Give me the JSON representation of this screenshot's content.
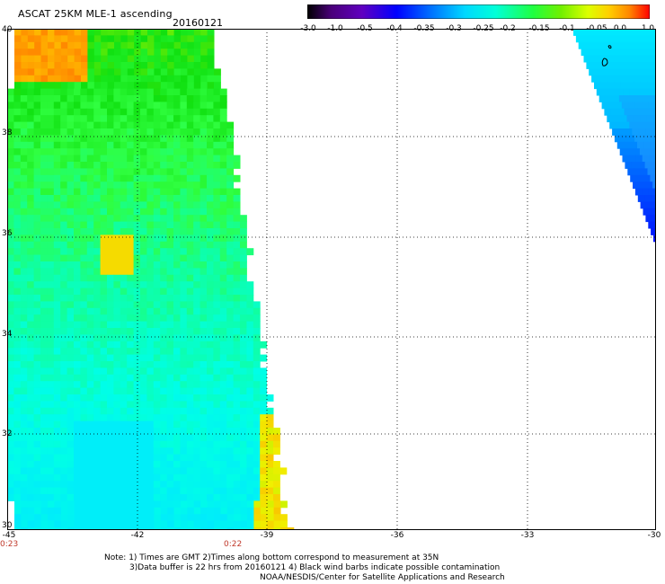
{
  "header": {
    "title": "ASCAT 25KM MLE-1 ascending",
    "date": "20160121"
  },
  "colorbar": {
    "labels": [
      "-3.0",
      "-1.0",
      "-0.5",
      "-0.4",
      "-0.35",
      "-0.3",
      "-0.25",
      "-0.2",
      "-0.15",
      "-0.1",
      "-0.05",
      "0.0",
      "1.0"
    ],
    "colors": [
      "#000000",
      "#5a00a8",
      "#0000ff",
      "#0078ff",
      "#00c8ff",
      "#00ffff",
      "#00ffb0",
      "#40ff40",
      "#00e000",
      "#b0ff00",
      "#ffff00",
      "#ff9000",
      "#ff0000"
    ]
  },
  "map": {
    "lat_labels": [
      "40",
      "38",
      "36",
      "34",
      "32",
      "30"
    ],
    "lon_labels": [
      "-45",
      "-42",
      "-39",
      "-36",
      "-33",
      "-30"
    ],
    "lat_range": [
      30,
      40
    ],
    "lon_range": [
      -45,
      -30
    ],
    "gridlines": "dotted"
  },
  "time_labels": [
    "0:23",
    "0:22"
  ],
  "notes": {
    "line1": "Note: 1) Times are GMT 2)Times along bottom correspond to measurement at 35N",
    "line2": "3)Data buffer is 22 hrs from 20160121 4) Black wind barbs indicate possible contamination",
    "line3": "NOAA/NESDIS/Center for Satellite Applications and Research"
  }
}
